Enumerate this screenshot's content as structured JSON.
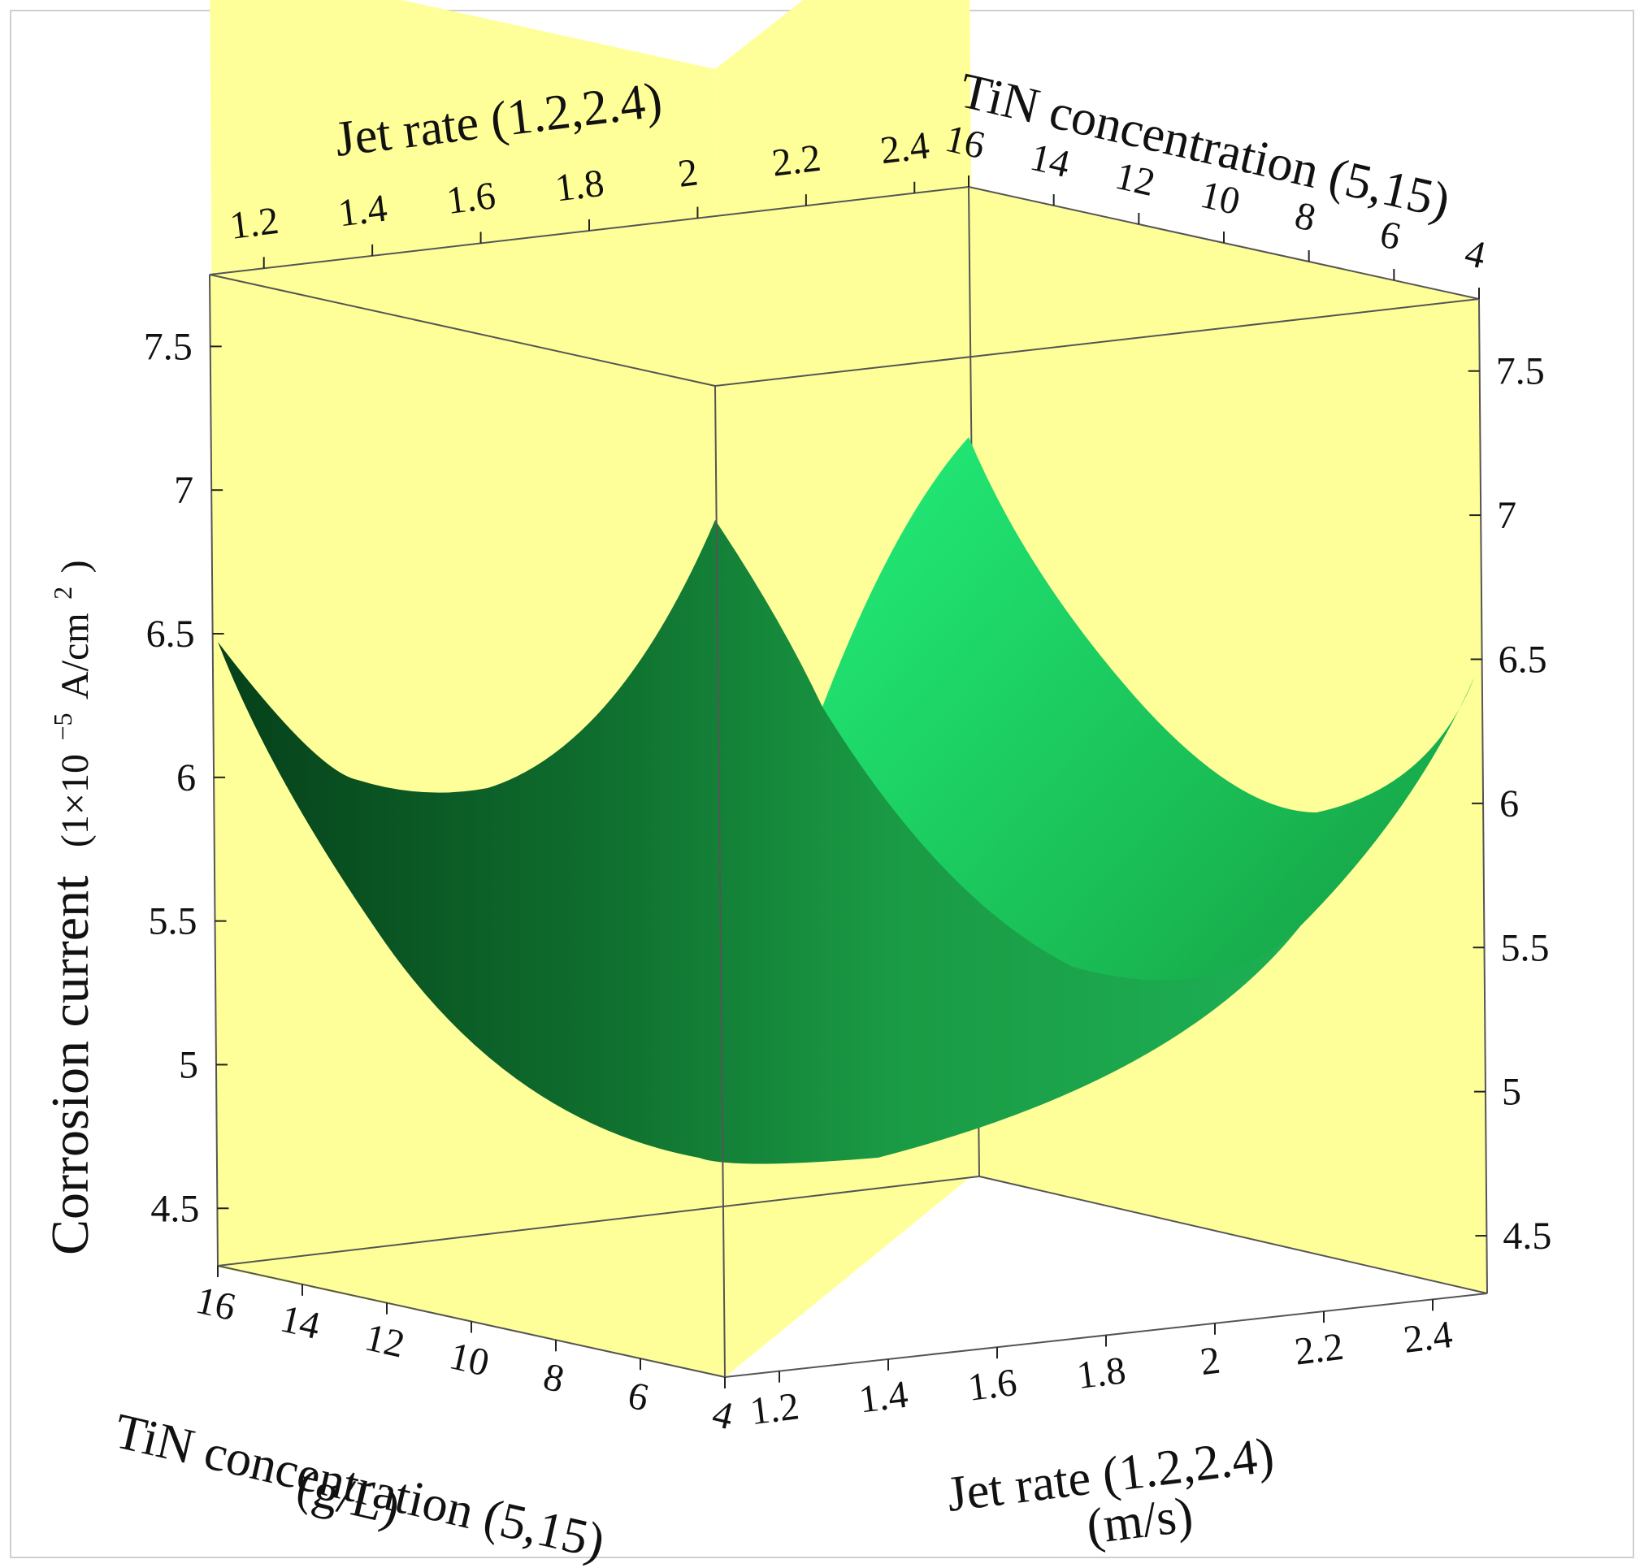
{
  "chart_data": {
    "type": "surface3d",
    "title": "",
    "x_axis": {
      "label": "Jet rate (1.2,2.4)",
      "unit": "(m/s)",
      "range": [
        1.1,
        2.5
      ],
      "ticks": [
        "1.2",
        "1.4",
        "1.6",
        "1.8",
        "2",
        "2.2",
        "2.4"
      ]
    },
    "y_axis": {
      "label": "TiN concentration (5,15)",
      "unit": "(g/L)",
      "range": [
        4,
        16
      ],
      "ticks": [
        "16",
        "14",
        "12",
        "10",
        "8",
        "6",
        "4"
      ]
    },
    "z_axis": {
      "label": "Corrosion current",
      "unit_prefix": "(1×10",
      "unit_exponent": "−5",
      "unit_mid": "A/cm",
      "unit_power": "2",
      "unit_suffix": ")",
      "range": [
        4.3,
        7.75
      ],
      "ticks": [
        "4.5",
        "5",
        "5.5",
        "6",
        "6.5",
        "7",
        "7.5"
      ]
    },
    "surface": {
      "description_colors": {
        "dark": "#0a4a1c",
        "mid": "#1a8a3a",
        "light": "#22e070"
      },
      "corner_values": [
        {
          "x": 1.2,
          "y": 16,
          "z": 6.55
        },
        {
          "x": 2.4,
          "y": 16,
          "z": 7.25
        },
        {
          "x": 1.2,
          "y": 4,
          "z": 6.9
        },
        {
          "x": 2.4,
          "y": 4,
          "z": 6.45
        }
      ],
      "minimum": {
        "x": 1.85,
        "y": 10.5,
        "z": 4.65
      }
    },
    "grid": false,
    "background_color": "#ffff99"
  }
}
